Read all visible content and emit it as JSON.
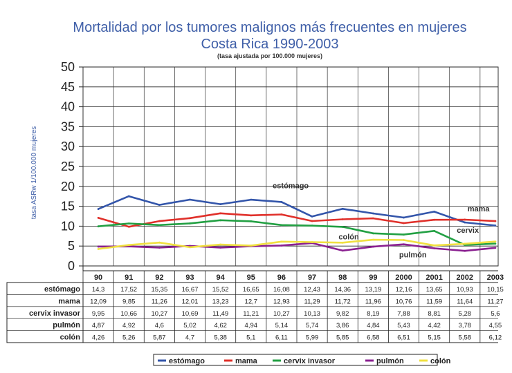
{
  "chart_data": {
    "type": "line",
    "title": "Mortalidad por los tumores malignos más frecuentes en mujeres",
    "subtitle": "Costa Rica 1990-2003",
    "note": "(tasa ajustada por 100.000 mujeres)",
    "ylabel": "tasa ASRw 1/100.000 mujeres",
    "xlabel": "",
    "ylim": [
      0,
      50
    ],
    "yticks": [
      "0",
      "5",
      "10",
      "15",
      "20",
      "25",
      "30",
      "35",
      "40",
      "45",
      "50"
    ],
    "categories": [
      "90",
      "91",
      "92",
      "93",
      "94",
      "95",
      "96",
      "97",
      "98",
      "99",
      "2000",
      "2001",
      "2002",
      "2003"
    ],
    "series": [
      {
        "name": "estómago",
        "color": "#3355aa",
        "values": [
          14.3,
          17.52,
          15.35,
          16.67,
          15.52,
          16.65,
          16.08,
          12.43,
          14.36,
          13.19,
          12.16,
          13.65,
          10.93,
          10.15
        ],
        "labels": [
          "14,3",
          "17,52",
          "15,35",
          "16,67",
          "15,52",
          "16,65",
          "16,08",
          "12,43",
          "14,36",
          "13,19",
          "12,16",
          "13,65",
          "10,93",
          "10,15"
        ]
      },
      {
        "name": "mama",
        "color": "#e0302a",
        "values": [
          12.09,
          9.85,
          11.26,
          12.01,
          13.23,
          12.7,
          12.93,
          11.29,
          11.72,
          11.96,
          10.76,
          11.59,
          11.64,
          11.27
        ],
        "labels": [
          "12,09",
          "9,85",
          "11,26",
          "12,01",
          "13,23",
          "12,7",
          "12,93",
          "11,29",
          "11,72",
          "11,96",
          "10,76",
          "11,59",
          "11,64",
          "11,27"
        ]
      },
      {
        "name": "cervix invasor",
        "color": "#22a043",
        "values": [
          9.95,
          10.66,
          10.27,
          10.69,
          11.49,
          11.21,
          10.27,
          10.13,
          9.82,
          8.19,
          7.88,
          8.81,
          5.28,
          5.6
        ],
        "labels": [
          "9,95",
          "10,66",
          "10,27",
          "10,69",
          "11,49",
          "11,21",
          "10,27",
          "10,13",
          "9,82",
          "8,19",
          "7,88",
          "8,81",
          "5,28",
          "5,6"
        ]
      },
      {
        "name": "pulmón",
        "color": "#8a2090",
        "values": [
          4.87,
          4.92,
          4.6,
          5.02,
          4.62,
          4.94,
          5.14,
          5.74,
          3.86,
          4.84,
          5.43,
          4.42,
          3.78,
          4.55
        ],
        "labels": [
          "4,87",
          "4,92",
          "4,6",
          "5,02",
          "4,62",
          "4,94",
          "5,14",
          "5,74",
          "3,86",
          "4,84",
          "5,43",
          "4,42",
          "3,78",
          "4,55"
        ]
      },
      {
        "name": "colón",
        "color": "#f0e040",
        "values": [
          4.26,
          5.26,
          5.87,
          4.7,
          5.38,
          5.1,
          6.11,
          5.99,
          5.85,
          6.58,
          6.51,
          5.15,
          5.58,
          6.12
        ],
        "labels": [
          "4,26",
          "5,26",
          "5,87",
          "4,7",
          "5,38",
          "5,1",
          "6,11",
          "5,99",
          "5,85",
          "6,58",
          "6,51",
          "5,15",
          "5,58",
          "6,12"
        ]
      }
    ],
    "annotations": [
      "estómago",
      "mama",
      "cervix",
      "colón",
      "pulmón"
    ],
    "legend": [
      "estómago",
      "mama",
      "cervix invasor",
      "pulmón",
      "colón"
    ],
    "legend_position": "bottom"
  }
}
